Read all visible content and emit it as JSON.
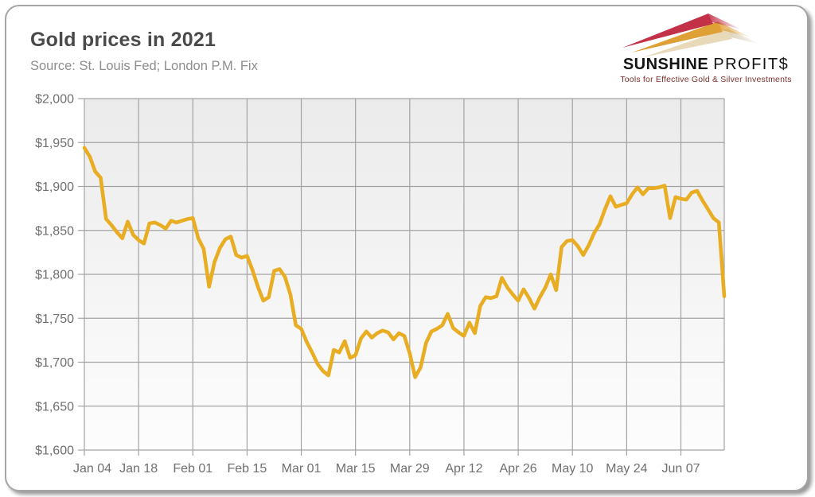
{
  "header": {
    "title": "Gold prices in 2021",
    "source": "Source: St. Louis Fed; London P.M. Fix"
  },
  "logo": {
    "wordmark_bold": "SUNSHINE",
    "wordmark_light": "PROFIT$",
    "tagline": "Tools for Effective Gold & Silver Investments",
    "streak_colors": [
      "#c23147",
      "#dfa035",
      "#e8dab9"
    ]
  },
  "chart_data": {
    "type": "line",
    "title": "Gold prices in 2021",
    "y_axis": {
      "tick_labels": [
        "$2,000",
        "$1,950",
        "$1,900",
        "$1,850",
        "$1,800",
        "$1,750",
        "$1,700",
        "$1,650",
        "$1,600"
      ],
      "tick_values": [
        2000,
        1950,
        1900,
        1850,
        1800,
        1750,
        1700,
        1650,
        1600
      ],
      "ylim": [
        1600,
        2000
      ]
    },
    "x_axis": {
      "tick_labels": [
        "Jan 04",
        "Jan 18",
        "Feb 01",
        "Feb 15",
        "Mar 01",
        "Mar 15",
        "Mar 29",
        "Apr 12",
        "Apr 26",
        "May 10",
        "May 24",
        "Jun 07"
      ],
      "tick_every_points": 10
    },
    "grid": "on",
    "line_color": "#e9ad24",
    "values": [
      1944,
      1934,
      1917,
      1910,
      1863,
      1856,
      1848,
      1841,
      1860,
      1845,
      1839,
      1835,
      1858,
      1859,
      1856,
      1852,
      1861,
      1859,
      1861,
      1863,
      1864,
      1841,
      1829,
      1786,
      1814,
      1830,
      1840,
      1843,
      1822,
      1819,
      1821,
      1805,
      1786,
      1770,
      1774,
      1804,
      1806,
      1797,
      1777,
      1742,
      1738,
      1723,
      1711,
      1698,
      1690,
      1685,
      1714,
      1711,
      1724,
      1705,
      1708,
      1727,
      1735,
      1728,
      1733,
      1736,
      1734,
      1726,
      1733,
      1730,
      1710,
      1683,
      1694,
      1722,
      1735,
      1738,
      1742,
      1755,
      1739,
      1734,
      1730,
      1745,
      1733,
      1764,
      1774,
      1773,
      1775,
      1796,
      1785,
      1777,
      1770,
      1783,
      1773,
      1761,
      1774,
      1785,
      1800,
      1782,
      1831,
      1838,
      1839,
      1832,
      1822,
      1833,
      1847,
      1857,
      1874,
      1889,
      1877,
      1879,
      1881,
      1891,
      1899,
      1891,
      1898,
      1898,
      1899,
      1901,
      1864,
      1888,
      1886,
      1885,
      1893,
      1895,
      1884,
      1874,
      1864,
      1859,
      1775
    ]
  }
}
